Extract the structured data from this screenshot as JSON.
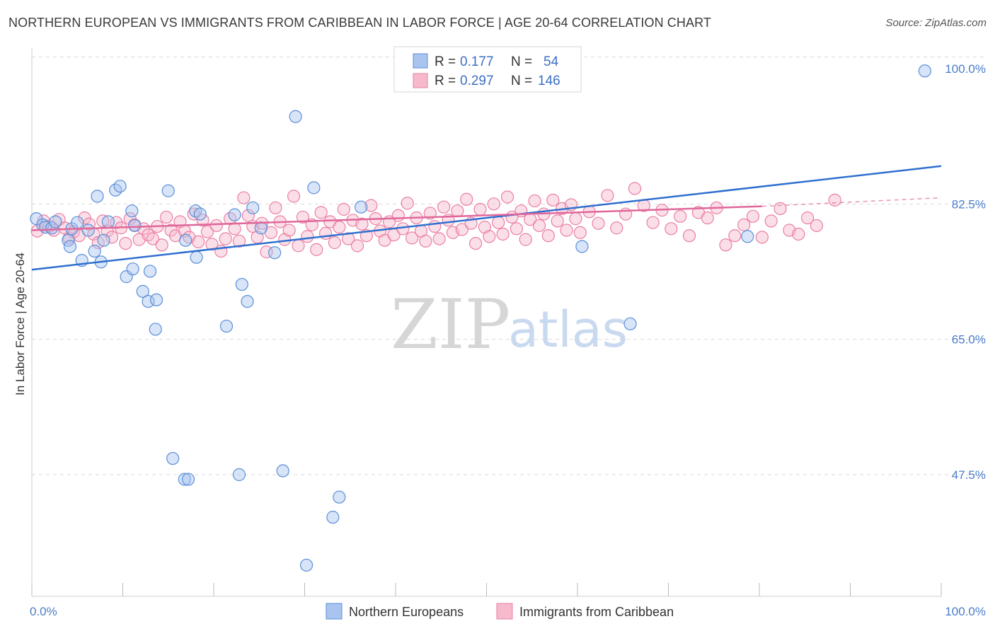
{
  "title": "NORTHERN EUROPEAN VS IMMIGRANTS FROM CARIBBEAN IN LABOR FORCE | AGE 20-64 CORRELATION CHART",
  "source": "Source: ZipAtlas.com",
  "watermark": {
    "zip": "ZIP",
    "atlas": "atlas"
  },
  "colors": {
    "blue_fill": "#a9c4ee",
    "blue_stroke": "#5b8fd9",
    "blue_line": "#2f6fcf",
    "pink_fill": "#f7b9cc",
    "pink_stroke": "#ea7fa3",
    "pink_line": "#e0679a",
    "axis_label": "#4a7cc9",
    "grid": "#d9d9d9"
  },
  "legend": {
    "rows": [
      {
        "r_label": "R =",
        "r_value": "0.177",
        "n_label": "N =",
        "n_value": "54",
        "color": "blue"
      },
      {
        "r_label": "R =",
        "r_value": "0.297",
        "n_label": "N =",
        "n_value": "146",
        "color": "pink"
      }
    ]
  },
  "chart_data": {
    "type": "scatter",
    "title": "NORTHERN EUROPEAN VS IMMIGRANTS FROM CARIBBEAN IN LABOR FORCE | AGE 20-64 CORRELATION CHART",
    "xlabel": "",
    "ylabel": "In Labor Force | Age 20-64",
    "xlim": [
      0,
      100
    ],
    "ylim": [
      33,
      102
    ],
    "x_tick_labels": [
      {
        "value": 0,
        "label": "0.0%"
      },
      {
        "value": 100,
        "label": "100.0%"
      }
    ],
    "y_tick_labels": [
      {
        "value": 100,
        "label": "100.0%"
      },
      {
        "value": 82.5,
        "label": "82.5%"
      },
      {
        "value": 65,
        "label": "65.0%"
      },
      {
        "value": 47.5,
        "label": "47.5%"
      }
    ],
    "x_minor_ticks": [
      0,
      10,
      20,
      30,
      40,
      50,
      60,
      70,
      80,
      90,
      100
    ],
    "grid": {
      "horizontal_dashed": [
        101.5,
        82.5,
        65,
        47.5
      ]
    },
    "legend_position": "top-center",
    "series": [
      {
        "name": "Northern Europeans",
        "color": "blue",
        "points": [
          [
            0.5,
            80.6
          ],
          [
            1.2,
            79.8
          ],
          [
            1.5,
            79.5
          ],
          [
            2.2,
            79.4
          ],
          [
            2.6,
            80.2
          ],
          [
            4.0,
            77.8
          ],
          [
            4.2,
            77.0
          ],
          [
            4.4,
            79.3
          ],
          [
            5.0,
            80.1
          ],
          [
            5.5,
            75.2
          ],
          [
            6.2,
            79.1
          ],
          [
            6.9,
            76.4
          ],
          [
            7.2,
            83.5
          ],
          [
            7.6,
            75.0
          ],
          [
            7.9,
            77.8
          ],
          [
            8.4,
            80.2
          ],
          [
            9.2,
            84.3
          ],
          [
            9.7,
            84.8
          ],
          [
            10.4,
            73.1
          ],
          [
            11.0,
            81.6
          ],
          [
            11.1,
            74.1
          ],
          [
            11.3,
            79.7
          ],
          [
            12.2,
            71.2
          ],
          [
            12.8,
            69.9
          ],
          [
            13.0,
            73.8
          ],
          [
            13.6,
            66.3
          ],
          [
            13.7,
            70.1
          ],
          [
            15.0,
            84.2
          ],
          [
            15.5,
            49.6
          ],
          [
            16.8,
            46.9
          ],
          [
            16.9,
            77.8
          ],
          [
            17.2,
            46.9
          ],
          [
            18.0,
            81.6
          ],
          [
            18.1,
            75.6
          ],
          [
            18.5,
            81.2
          ],
          [
            21.4,
            66.7
          ],
          [
            22.3,
            81.1
          ],
          [
            22.8,
            47.5
          ],
          [
            23.1,
            72.1
          ],
          [
            23.7,
            69.9
          ],
          [
            24.3,
            82.0
          ],
          [
            25.2,
            79.4
          ],
          [
            26.7,
            76.2
          ],
          [
            27.6,
            48.0
          ],
          [
            29.0,
            93.8
          ],
          [
            30.2,
            35.8
          ],
          [
            31.0,
            84.6
          ],
          [
            33.1,
            42.0
          ],
          [
            33.8,
            44.6
          ],
          [
            36.2,
            82.1
          ],
          [
            60.5,
            77.0
          ],
          [
            65.8,
            67.0
          ],
          [
            78.7,
            78.3
          ],
          [
            98.2,
            99.7
          ]
        ]
      },
      {
        "name": "Immigrants from Caribbean",
        "color": "pink",
        "points": [
          [
            0.6,
            79.0
          ],
          [
            1.3,
            80.3
          ],
          [
            1.9,
            79.6
          ],
          [
            2.4,
            79.1
          ],
          [
            3.0,
            80.5
          ],
          [
            3.6,
            79.4
          ],
          [
            4.1,
            78.1
          ],
          [
            4.6,
            78.9
          ],
          [
            5.2,
            78.4
          ],
          [
            5.8,
            80.7
          ],
          [
            6.3,
            79.9
          ],
          [
            6.8,
            78.6
          ],
          [
            7.3,
            77.5
          ],
          [
            7.8,
            80.3
          ],
          [
            8.3,
            79.0
          ],
          [
            8.8,
            78.2
          ],
          [
            9.3,
            80.1
          ],
          [
            9.8,
            79.4
          ],
          [
            10.3,
            77.4
          ],
          [
            10.8,
            80.6
          ],
          [
            11.3,
            79.8
          ],
          [
            11.8,
            77.9
          ],
          [
            12.3,
            79.3
          ],
          [
            12.8,
            78.5
          ],
          [
            13.3,
            78.0
          ],
          [
            13.8,
            79.6
          ],
          [
            14.3,
            77.2
          ],
          [
            14.8,
            80.8
          ],
          [
            15.3,
            79.1
          ],
          [
            15.8,
            78.4
          ],
          [
            16.3,
            80.2
          ],
          [
            16.8,
            79.0
          ],
          [
            17.3,
            78.2
          ],
          [
            17.8,
            81.2
          ],
          [
            18.3,
            77.6
          ],
          [
            18.8,
            80.4
          ],
          [
            19.3,
            78.9
          ],
          [
            19.8,
            77.3
          ],
          [
            20.3,
            79.7
          ],
          [
            20.8,
            76.4
          ],
          [
            21.3,
            78.0
          ],
          [
            21.8,
            80.6
          ],
          [
            22.3,
            79.3
          ],
          [
            22.8,
            77.7
          ],
          [
            23.3,
            83.3
          ],
          [
            23.8,
            81.0
          ],
          [
            24.3,
            79.6
          ],
          [
            24.8,
            78.2
          ],
          [
            25.3,
            80.0
          ],
          [
            25.8,
            76.3
          ],
          [
            26.3,
            78.8
          ],
          [
            26.8,
            82.0
          ],
          [
            27.3,
            80.2
          ],
          [
            27.8,
            77.9
          ],
          [
            28.3,
            79.1
          ],
          [
            28.8,
            83.5
          ],
          [
            29.3,
            77.1
          ],
          [
            29.8,
            80.8
          ],
          [
            30.3,
            78.3
          ],
          [
            30.8,
            79.8
          ],
          [
            31.3,
            76.6
          ],
          [
            31.8,
            81.4
          ],
          [
            32.3,
            78.7
          ],
          [
            32.8,
            80.2
          ],
          [
            33.3,
            77.5
          ],
          [
            33.8,
            79.5
          ],
          [
            34.3,
            81.8
          ],
          [
            34.8,
            78.0
          ],
          [
            35.3,
            80.4
          ],
          [
            35.8,
            77.1
          ],
          [
            36.3,
            79.9
          ],
          [
            36.8,
            78.4
          ],
          [
            37.3,
            82.3
          ],
          [
            37.8,
            80.6
          ],
          [
            38.3,
            79.0
          ],
          [
            38.8,
            77.8
          ],
          [
            39.3,
            80.2
          ],
          [
            39.8,
            78.5
          ],
          [
            40.3,
            81.0
          ],
          [
            40.8,
            79.3
          ],
          [
            41.3,
            82.6
          ],
          [
            41.8,
            78.1
          ],
          [
            42.3,
            80.7
          ],
          [
            42.8,
            79.0
          ],
          [
            43.3,
            77.7
          ],
          [
            43.8,
            81.3
          ],
          [
            44.3,
            79.6
          ],
          [
            44.8,
            78.0
          ],
          [
            45.3,
            82.1
          ],
          [
            45.8,
            80.4
          ],
          [
            46.3,
            78.8
          ],
          [
            46.8,
            81.6
          ],
          [
            47.3,
            79.2
          ],
          [
            47.8,
            83.1
          ],
          [
            48.3,
            80.0
          ],
          [
            48.8,
            77.4
          ],
          [
            49.3,
            81.8
          ],
          [
            49.8,
            79.5
          ],
          [
            50.3,
            78.3
          ],
          [
            50.8,
            82.5
          ],
          [
            51.3,
            80.1
          ],
          [
            51.8,
            78.6
          ],
          [
            52.3,
            83.4
          ],
          [
            52.8,
            80.8
          ],
          [
            53.3,
            79.3
          ],
          [
            53.8,
            81.6
          ],
          [
            54.3,
            77.9
          ],
          [
            54.8,
            80.5
          ],
          [
            55.3,
            82.9
          ],
          [
            55.8,
            79.7
          ],
          [
            56.3,
            81.2
          ],
          [
            56.8,
            78.4
          ],
          [
            57.3,
            83.0
          ],
          [
            57.8,
            80.3
          ],
          [
            58.3,
            81.9
          ],
          [
            58.8,
            79.1
          ],
          [
            59.3,
            82.4
          ],
          [
            59.8,
            80.6
          ],
          [
            60.3,
            78.8
          ],
          [
            61.3,
            81.5
          ],
          [
            62.3,
            80.0
          ],
          [
            63.3,
            83.6
          ],
          [
            64.3,
            79.4
          ],
          [
            65.3,
            81.2
          ],
          [
            66.3,
            84.5
          ],
          [
            67.3,
            82.3
          ],
          [
            68.3,
            80.1
          ],
          [
            69.3,
            81.7
          ],
          [
            70.3,
            79.3
          ],
          [
            71.3,
            80.9
          ],
          [
            72.3,
            78.4
          ],
          [
            73.3,
            81.4
          ],
          [
            74.3,
            80.7
          ],
          [
            75.3,
            82.0
          ],
          [
            76.3,
            77.2
          ],
          [
            77.3,
            78.4
          ],
          [
            78.3,
            79.8
          ],
          [
            79.3,
            80.9
          ],
          [
            80.3,
            78.2
          ],
          [
            81.3,
            80.3
          ],
          [
            82.3,
            81.9
          ],
          [
            83.3,
            79.1
          ],
          [
            84.3,
            78.6
          ],
          [
            85.3,
            80.7
          ],
          [
            86.3,
            79.7
          ],
          [
            88.3,
            83.0
          ]
        ]
      }
    ],
    "trend_lines": [
      {
        "series": "Northern Europeans",
        "x": [
          0,
          100
        ],
        "y": [
          74.0,
          87.4
        ]
      },
      {
        "series": "Immigrants from Caribbean",
        "x": [
          0,
          80.3
        ],
        "y": [
          79.1,
          82.2
        ],
        "dashed_extension": {
          "x": [
            80.3,
            100
          ],
          "y": [
            82.2,
            83.3
          ]
        }
      }
    ]
  },
  "bottom_legend": [
    {
      "label": "Northern Europeans",
      "color": "blue"
    },
    {
      "label": "Immigrants from Caribbean",
      "color": "pink"
    }
  ]
}
